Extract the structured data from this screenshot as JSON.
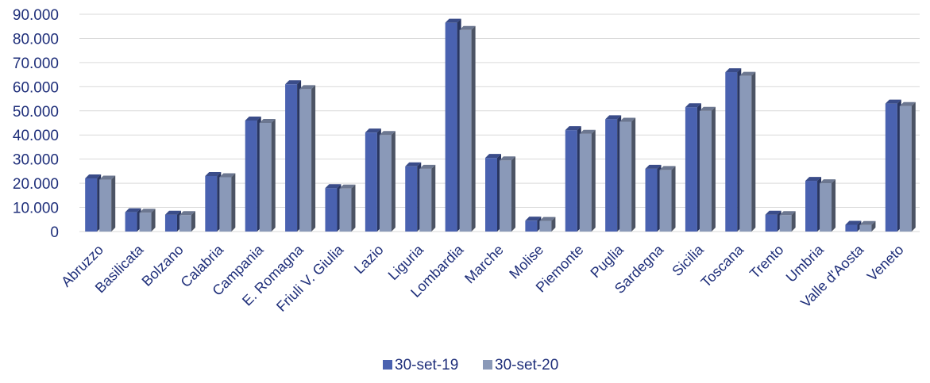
{
  "chart_data": {
    "type": "bar",
    "categories": [
      "Abruzzo",
      "Basilicata",
      "Bolzano",
      "Calabria",
      "Campania",
      "E. Romagna",
      "Friuli V. Giulia",
      "Lazio",
      "Liguria",
      "Lombardia",
      "Marche",
      "Molise",
      "Piemonte",
      "Puglia",
      "Sardegna",
      "Sicilia",
      "Toscana",
      "Trento",
      "Umbria",
      "Valle d'Aosta",
      "Veneto"
    ],
    "series": [
      {
        "name": "30-set-19",
        "color": "#4a62b0",
        "values": [
          22000,
          8000,
          7000,
          23000,
          46000,
          61000,
          18000,
          41000,
          27000,
          86500,
          30500,
          4500,
          42000,
          46500,
          26000,
          51500,
          66000,
          7000,
          21000,
          2800,
          53000
        ]
      },
      {
        "name": "30-set-20",
        "color": "#8a99b8",
        "values": [
          21500,
          7800,
          6800,
          22500,
          45000,
          59000,
          17800,
          40000,
          26000,
          83500,
          29500,
          4400,
          40500,
          45500,
          25500,
          50000,
          64500,
          6800,
          20000,
          2700,
          52000
        ]
      }
    ],
    "ylim": [
      0,
      90000
    ],
    "yticks": [
      "0",
      "10.000",
      "20.000",
      "30.000",
      "40.000",
      "50.000",
      "60.000",
      "70.000",
      "80.000",
      "90.000"
    ],
    "grid": true,
    "legend_position": "bottom",
    "bar_style": "3d"
  }
}
